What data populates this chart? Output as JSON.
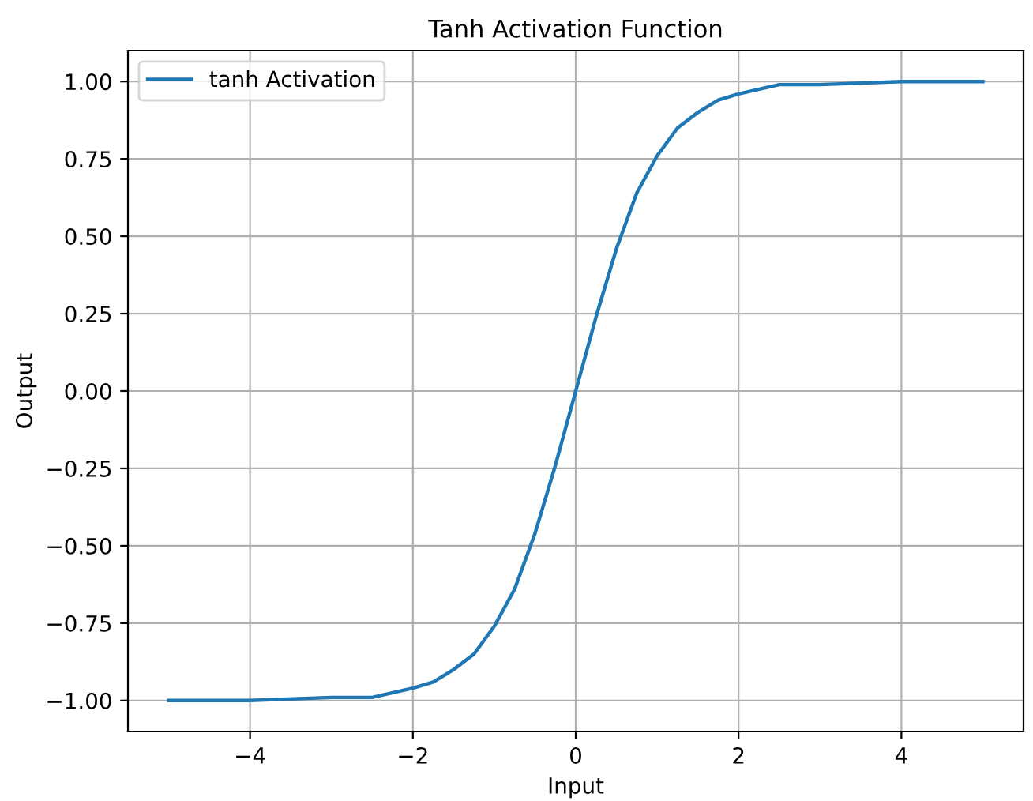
{
  "chart_data": {
    "type": "line",
    "title": "Tanh Activation Function",
    "xlabel": "Input",
    "ylabel": "Output",
    "xlim": [
      -5.5,
      5.5
    ],
    "ylim": [
      -1.1,
      1.1
    ],
    "xticks": [
      {
        "value": -4,
        "label": "−4"
      },
      {
        "value": -2,
        "label": "−2"
      },
      0,
      2,
      4
    ],
    "yticks": [
      {
        "value": -1,
        "label": "−1.00"
      },
      {
        "value": -0.75,
        "label": "−0.75"
      },
      {
        "value": -0.5,
        "label": "−0.50"
      },
      {
        "value": -0.25,
        "label": "−0.25"
      },
      {
        "value": 0,
        "label": "0.00"
      },
      {
        "value": 0.25,
        "label": "0.25"
      },
      {
        "value": 0.5,
        "label": "0.50"
      },
      {
        "value": 0.75,
        "label": "0.75"
      },
      {
        "value": 1,
        "label": "1.00"
      }
    ],
    "grid": true,
    "legend": "top left",
    "marker": "none",
    "line_style": "solid",
    "series": [
      {
        "name": "tanh Activation",
        "color": "#1f77b4",
        "x": [
          -5,
          -4,
          -3,
          -2.5,
          -2,
          -1.75,
          -1.5,
          -1.25,
          -1,
          -0.75,
          -0.5,
          -0.25,
          0,
          0.25,
          0.5,
          0.75,
          1,
          1.25,
          1.5,
          1.75,
          2,
          2.5,
          3,
          4,
          5
        ],
        "values": [
          -1.0,
          -1.0,
          -0.99,
          -0.99,
          -0.96,
          -0.94,
          -0.9,
          -0.85,
          -0.76,
          -0.64,
          -0.46,
          -0.24,
          0.0,
          0.24,
          0.46,
          0.64,
          0.76,
          0.85,
          0.9,
          0.94,
          0.96,
          0.99,
          0.99,
          1.0,
          1.0
        ]
      }
    ]
  }
}
